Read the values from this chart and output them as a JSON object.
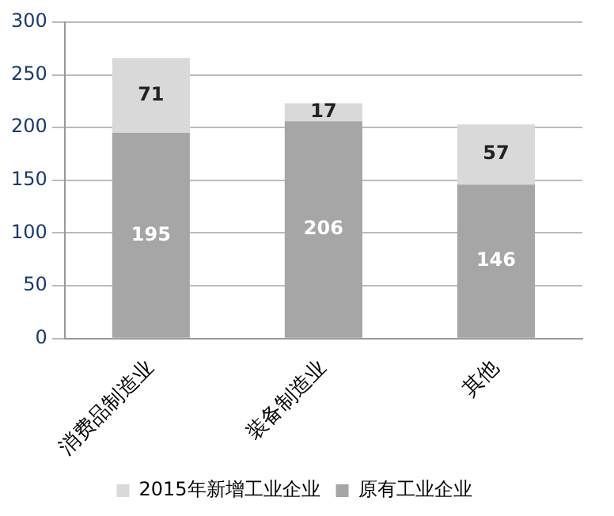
{
  "chart_data": {
    "type": "bar",
    "stacked": true,
    "categories": [
      "消费品制造业",
      "装备制造业",
      "其他"
    ],
    "series": [
      {
        "name": "原有工业企业",
        "color": "#a6a6a6",
        "values": [
          195,
          206,
          146
        ]
      },
      {
        "name": "2015年新增工业企业",
        "color": "#d9d9d9",
        "values": [
          71,
          17,
          57
        ]
      }
    ],
    "ylim": [
      0,
      300
    ],
    "yticks": [
      0,
      50,
      100,
      150,
      200,
      250,
      300
    ],
    "grid": "y",
    "legend": "bottom",
    "data_labels": true
  }
}
